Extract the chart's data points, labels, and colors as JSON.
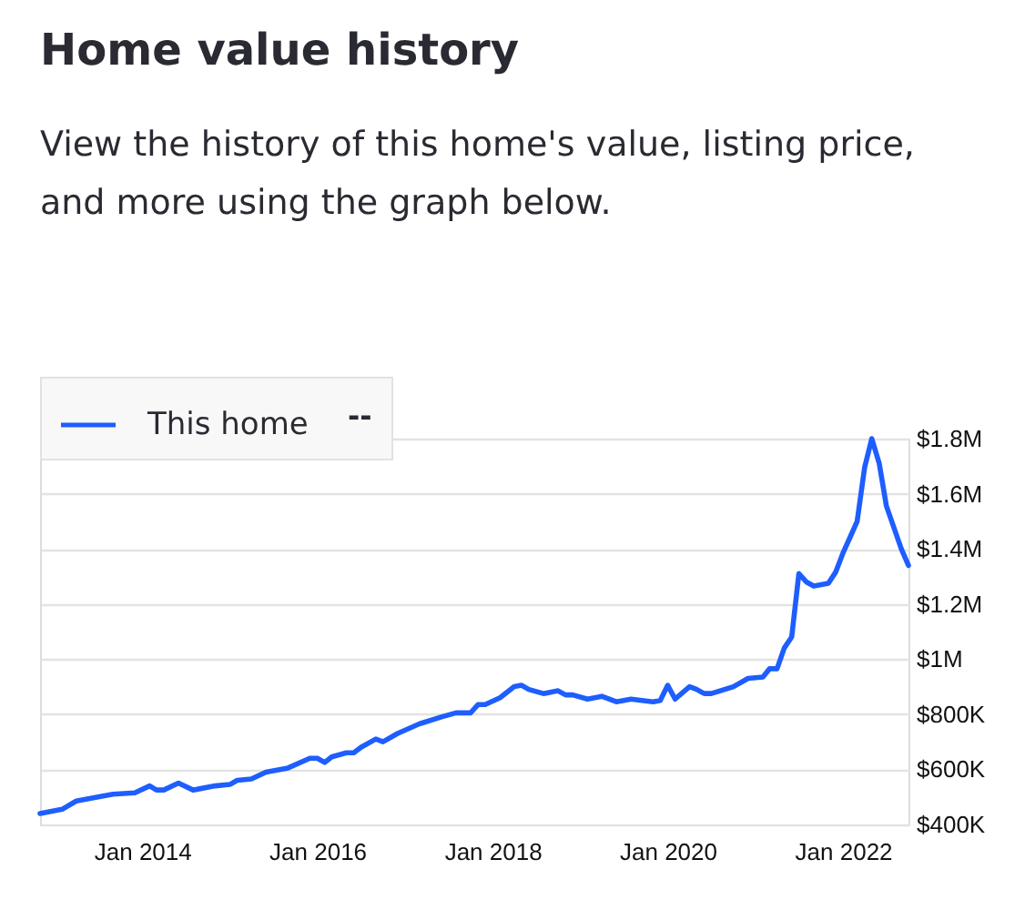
{
  "chart_data": {
    "type": "line",
    "title": "Home value history",
    "subtitle": "View the history of this home's value, listing price, and more using the graph below.",
    "annotations": [
      "--"
    ],
    "x": [
      "2012-11",
      "2013-02",
      "2013-04",
      "2013-07",
      "2013-09",
      "2013-12",
      "2014-02",
      "2014-03",
      "2014-04",
      "2014-06",
      "2014-08",
      "2014-09",
      "2014-11",
      "2015-01",
      "2015-02",
      "2015-04",
      "2015-06",
      "2015-09",
      "2015-12",
      "2016-01",
      "2016-02",
      "2016-03",
      "2016-05",
      "2016-06",
      "2016-07",
      "2016-09",
      "2016-10",
      "2016-12",
      "2017-03",
      "2017-06",
      "2017-08",
      "2017-10",
      "2017-11",
      "2017-12",
      "2018-02",
      "2018-04",
      "2018-05",
      "2018-06",
      "2018-08",
      "2018-10",
      "2018-11",
      "2018-12",
      "2019-02",
      "2019-04",
      "2019-06",
      "2019-08",
      "2019-11",
      "2019-12",
      "2020-01",
      "2020-02",
      "2020-04",
      "2020-05",
      "2020-06",
      "2020-07",
      "2020-10",
      "2020-12",
      "2021-02",
      "2021-03",
      "2021-04",
      "2021-05",
      "2021-06",
      "2021-07",
      "2021-08",
      "2021-09",
      "2021-11",
      "2021-12",
      "2022-01",
      "2022-02",
      "2022-03",
      "2022-04",
      "2022-05",
      "2022-06",
      "2022-07",
      "2022-09",
      "2022-10"
    ],
    "series": [
      {
        "name": "This home",
        "color": "#1e5eff",
        "values": [
          440000,
          455000,
          485000,
          500000,
          510000,
          515000,
          540000,
          525000,
          525000,
          550000,
          525000,
          530000,
          540000,
          545000,
          560000,
          565000,
          590000,
          605000,
          640000,
          640000,
          625000,
          645000,
          660000,
          660000,
          680000,
          710000,
          700000,
          730000,
          765000,
          790000,
          805000,
          805000,
          835000,
          835000,
          860000,
          900000,
          905000,
          890000,
          875000,
          885000,
          870000,
          870000,
          855000,
          865000,
          845000,
          855000,
          845000,
          850000,
          905000,
          855000,
          900000,
          890000,
          875000,
          875000,
          900000,
          930000,
          935000,
          965000,
          965000,
          1040000,
          1080000,
          1310000,
          1280000,
          1265000,
          1275000,
          1315000,
          1385000,
          1445000,
          1500000,
          1695000,
          1800000,
          1710000,
          1555000,
          1400000,
          1340000
        ]
      }
    ],
    "xlim": [
      "2012-11",
      "2022-10"
    ],
    "ylim": [
      400000,
      1800000
    ],
    "xticks": [
      {
        "value": "2014-01",
        "label": "Jan 2014"
      },
      {
        "value": "2016-01",
        "label": "Jan 2016"
      },
      {
        "value": "2018-01",
        "label": "Jan 2018"
      },
      {
        "value": "2020-01",
        "label": "Jan 2020"
      },
      {
        "value": "2022-01",
        "label": "Jan 2022"
      }
    ],
    "yticks": [
      {
        "value": 400000,
        "label": "$400K"
      },
      {
        "value": 600000,
        "label": "$600K"
      },
      {
        "value": 800000,
        "label": "$800K"
      },
      {
        "value": 1000000,
        "label": "$1M"
      },
      {
        "value": 1200000,
        "label": "$1.2M"
      },
      {
        "value": 1400000,
        "label": "$1.4M"
      },
      {
        "value": 1600000,
        "label": "$1.6M"
      },
      {
        "value": 1800000,
        "label": "$1.8M"
      }
    ],
    "grid": "y",
    "legend": "top left",
    "line_style": "solid"
  }
}
